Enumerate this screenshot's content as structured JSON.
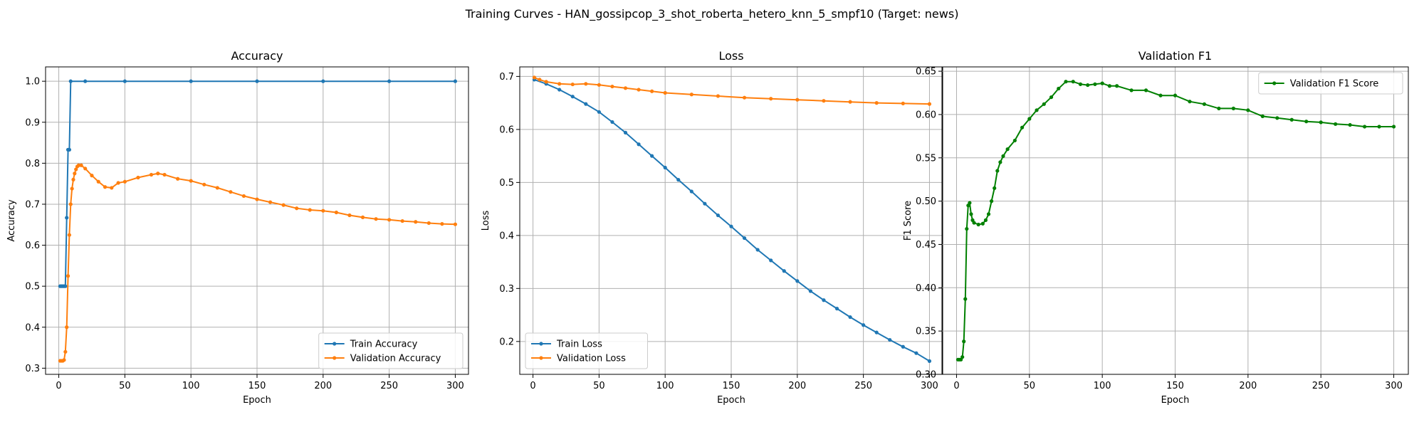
{
  "figure": {
    "suptitle": "Training Curves - HAN_gossipcop_3_shot_roberta_hetero_knn_5_smpf10 (Target: news)"
  },
  "colors": {
    "train": "#1f77b4",
    "validation": "#ff7f0e",
    "f1": "#008000",
    "grid": "#b0b0b0"
  },
  "chart_data": [
    {
      "type": "line",
      "title": "Accuracy",
      "xlabel": "Epoch",
      "ylabel": "Accuracy",
      "xlim": [
        -10,
        310
      ],
      "ylim": [
        0.285,
        1.035
      ],
      "xticks": [
        0,
        50,
        100,
        150,
        200,
        250,
        300
      ],
      "yticks": [
        0.3,
        0.4,
        0.5,
        0.6,
        0.7,
        0.8,
        0.9,
        1.0
      ],
      "ytick_labels": [
        "0.3",
        "0.4",
        "0.5",
        "0.6",
        "0.7",
        "0.8",
        "0.9",
        "1.0"
      ],
      "grid": true,
      "legend": "lower-right",
      "series": [
        {
          "name": "Train Accuracy",
          "color": "#1f77b4",
          "points": [
            [
              1,
              0.5
            ],
            [
              2,
              0.5
            ],
            [
              3,
              0.5
            ],
            [
              4,
              0.5
            ],
            [
              5,
              0.5
            ],
            [
              6,
              0.667
            ],
            [
              7,
              0.833
            ],
            [
              8,
              0.833
            ],
            [
              9,
              1.0
            ],
            [
              20,
              1.0
            ],
            [
              50,
              1.0
            ],
            [
              100,
              1.0
            ],
            [
              150,
              1.0
            ],
            [
              200,
              1.0
            ],
            [
              250,
              1.0
            ],
            [
              300,
              1.0
            ]
          ]
        },
        {
          "name": "Validation Accuracy",
          "color": "#ff7f0e",
          "points": [
            [
              1,
              0.318
            ],
            [
              2,
              0.318
            ],
            [
              3,
              0.318
            ],
            [
              4,
              0.32
            ],
            [
              5,
              0.34
            ],
            [
              6,
              0.4
            ],
            [
              7,
              0.525
            ],
            [
              8,
              0.625
            ],
            [
              9,
              0.7
            ],
            [
              10,
              0.738
            ],
            [
              11,
              0.76
            ],
            [
              12,
              0.775
            ],
            [
              13,
              0.785
            ],
            [
              14,
              0.792
            ],
            [
              15,
              0.795
            ],
            [
              17,
              0.795
            ],
            [
              20,
              0.787
            ],
            [
              25,
              0.77
            ],
            [
              30,
              0.755
            ],
            [
              35,
              0.742
            ],
            [
              40,
              0.74
            ],
            [
              45,
              0.752
            ],
            [
              50,
              0.755
            ],
            [
              60,
              0.765
            ],
            [
              70,
              0.772
            ],
            [
              75,
              0.775
            ],
            [
              80,
              0.772
            ],
            [
              90,
              0.762
            ],
            [
              100,
              0.757
            ],
            [
              110,
              0.748
            ],
            [
              120,
              0.74
            ],
            [
              130,
              0.73
            ],
            [
              140,
              0.72
            ],
            [
              150,
              0.712
            ],
            [
              160,
              0.705
            ],
            [
              170,
              0.698
            ],
            [
              180,
              0.69
            ],
            [
              190,
              0.686
            ],
            [
              200,
              0.684
            ],
            [
              210,
              0.68
            ],
            [
              220,
              0.673
            ],
            [
              230,
              0.668
            ],
            [
              240,
              0.664
            ],
            [
              250,
              0.662
            ],
            [
              260,
              0.659
            ],
            [
              270,
              0.657
            ],
            [
              280,
              0.654
            ],
            [
              290,
              0.652
            ],
            [
              300,
              0.651
            ]
          ]
        }
      ]
    },
    {
      "type": "line",
      "title": "Loss",
      "xlabel": "Epoch",
      "ylabel": "Loss",
      "xlim": [
        -10,
        310
      ],
      "ylim": [
        0.138,
        0.718
      ],
      "xticks": [
        0,
        50,
        100,
        150,
        200,
        250,
        300
      ],
      "yticks": [
        0.2,
        0.3,
        0.4,
        0.5,
        0.6,
        0.7
      ],
      "ytick_labels": [
        "0.2",
        "0.3",
        "0.4",
        "0.5",
        "0.6",
        "0.7"
      ],
      "grid": true,
      "legend": "lower-left",
      "series": [
        {
          "name": "Train Loss",
          "color": "#1f77b4",
          "points": [
            [
              1,
              0.694
            ],
            [
              10,
              0.686
            ],
            [
              20,
              0.675
            ],
            [
              30,
              0.662
            ],
            [
              40,
              0.648
            ],
            [
              50,
              0.633
            ],
            [
              60,
              0.614
            ],
            [
              70,
              0.594
            ],
            [
              80,
              0.572
            ],
            [
              90,
              0.55
            ],
            [
              100,
              0.528
            ],
            [
              110,
              0.505
            ],
            [
              120,
              0.483
            ],
            [
              130,
              0.46
            ],
            [
              140,
              0.438
            ],
            [
              150,
              0.417
            ],
            [
              160,
              0.395
            ],
            [
              170,
              0.373
            ],
            [
              180,
              0.353
            ],
            [
              190,
              0.333
            ],
            [
              200,
              0.314
            ],
            [
              210,
              0.295
            ],
            [
              220,
              0.278
            ],
            [
              230,
              0.262
            ],
            [
              240,
              0.246
            ],
            [
              250,
              0.231
            ],
            [
              260,
              0.217
            ],
            [
              270,
              0.203
            ],
            [
              280,
              0.19
            ],
            [
              290,
              0.178
            ],
            [
              300,
              0.163
            ]
          ]
        },
        {
          "name": "Validation Loss",
          "color": "#ff7f0e",
          "points": [
            [
              1,
              0.698
            ],
            [
              5,
              0.694
            ],
            [
              10,
              0.69
            ],
            [
              20,
              0.686
            ],
            [
              30,
              0.685
            ],
            [
              40,
              0.686
            ],
            [
              50,
              0.684
            ],
            [
              60,
              0.681
            ],
            [
              70,
              0.678
            ],
            [
              80,
              0.675
            ],
            [
              90,
              0.672
            ],
            [
              100,
              0.669
            ],
            [
              120,
              0.666
            ],
            [
              140,
              0.663
            ],
            [
              160,
              0.66
            ],
            [
              180,
              0.658
            ],
            [
              200,
              0.656
            ],
            [
              220,
              0.654
            ],
            [
              240,
              0.652
            ],
            [
              260,
              0.65
            ],
            [
              280,
              0.649
            ],
            [
              300,
              0.648
            ]
          ]
        }
      ]
    },
    {
      "type": "line",
      "title": "Validation F1",
      "xlabel": "Epoch",
      "ylabel": "F1 Score",
      "xlim": [
        -10,
        310
      ],
      "ylim": [
        0.3,
        0.655
      ],
      "xticks": [
        0,
        50,
        100,
        150,
        200,
        250,
        300
      ],
      "yticks": [
        0.3,
        0.35,
        0.4,
        0.45,
        0.5,
        0.55,
        0.6,
        0.65
      ],
      "ytick_labels": [
        "0.30",
        "0.35",
        "0.40",
        "0.45",
        "0.50",
        "0.55",
        "0.60",
        "0.65"
      ],
      "grid": true,
      "legend": "upper-right",
      "series": [
        {
          "name": "Validation F1 Score",
          "color": "#008000",
          "points": [
            [
              1,
              0.317
            ],
            [
              2,
              0.317
            ],
            [
              3,
              0.317
            ],
            [
              4,
              0.32
            ],
            [
              5,
              0.338
            ],
            [
              6,
              0.387
            ],
            [
              7,
              0.468
            ],
            [
              8,
              0.495
            ],
            [
              9,
              0.498
            ],
            [
              10,
              0.485
            ],
            [
              11,
              0.478
            ],
            [
              12,
              0.475
            ],
            [
              15,
              0.473
            ],
            [
              18,
              0.474
            ],
            [
              20,
              0.478
            ],
            [
              22,
              0.485
            ],
            [
              24,
              0.5
            ],
            [
              26,
              0.515
            ],
            [
              28,
              0.535
            ],
            [
              30,
              0.545
            ],
            [
              32,
              0.552
            ],
            [
              35,
              0.56
            ],
            [
              40,
              0.57
            ],
            [
              45,
              0.585
            ],
            [
              50,
              0.595
            ],
            [
              55,
              0.605
            ],
            [
              60,
              0.612
            ],
            [
              65,
              0.62
            ],
            [
              70,
              0.63
            ],
            [
              75,
              0.638
            ],
            [
              80,
              0.638
            ],
            [
              85,
              0.635
            ],
            [
              90,
              0.634
            ],
            [
              95,
              0.635
            ],
            [
              100,
              0.636
            ],
            [
              105,
              0.633
            ],
            [
              110,
              0.633
            ],
            [
              120,
              0.628
            ],
            [
              130,
              0.628
            ],
            [
              140,
              0.622
            ],
            [
              150,
              0.622
            ],
            [
              160,
              0.615
            ],
            [
              170,
              0.612
            ],
            [
              180,
              0.607
            ],
            [
              190,
              0.607
            ],
            [
              200,
              0.605
            ],
            [
              210,
              0.598
            ],
            [
              220,
              0.596
            ],
            [
              230,
              0.594
            ],
            [
              240,
              0.592
            ],
            [
              250,
              0.591
            ],
            [
              260,
              0.589
            ],
            [
              270,
              0.588
            ],
            [
              280,
              0.586
            ],
            [
              290,
              0.586
            ],
            [
              300,
              0.586
            ]
          ]
        }
      ]
    }
  ]
}
